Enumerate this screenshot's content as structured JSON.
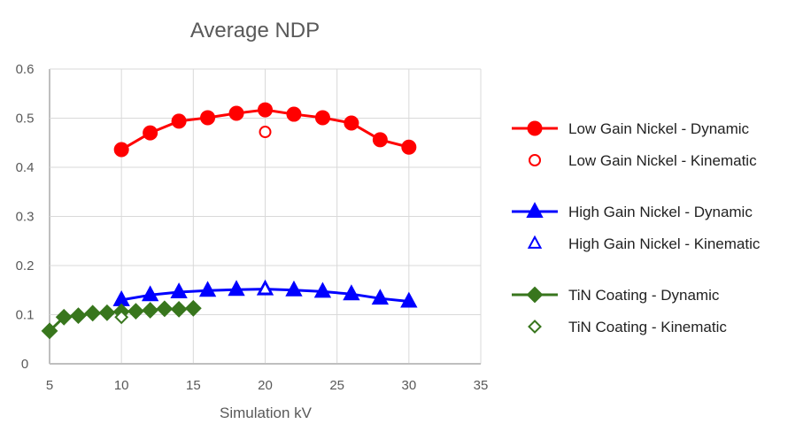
{
  "chart_data": {
    "type": "line",
    "title": "Average NDP",
    "xlabel": "Simulation kV",
    "ylabel": "",
    "xlim": [
      5,
      35
    ],
    "ylim": [
      0,
      0.6
    ],
    "xticks": [
      "5",
      "10",
      "15",
      "20",
      "25",
      "30",
      "35"
    ],
    "yticks": [
      "0",
      "0.1",
      "0.2",
      "0.3",
      "0.4",
      "0.5",
      "0.6"
    ],
    "grid": true,
    "legend_position": "right",
    "series": [
      {
        "name": "Low Gain Nickel - Dynamic",
        "color": "#FF0000",
        "marker": "circle",
        "filled": true,
        "line": true,
        "x": [
          10,
          12,
          14,
          16,
          18,
          20,
          22,
          24,
          26,
          28,
          30
        ],
        "y": [
          0.436,
          0.47,
          0.494,
          0.501,
          0.51,
          0.517,
          0.508,
          0.501,
          0.49,
          0.456,
          0.441
        ]
      },
      {
        "name": "Low Gain Nickel - Kinematic",
        "color": "#FF0000",
        "marker": "circle",
        "filled": false,
        "line": false,
        "x": [
          20
        ],
        "y": [
          0.472
        ]
      },
      {
        "name": "High Gain Nickel - Dynamic",
        "color": "#0000FF",
        "marker": "triangle",
        "filled": true,
        "line": true,
        "x": [
          10,
          12,
          14,
          16,
          18,
          20,
          22,
          24,
          26,
          28,
          30
        ],
        "y": [
          0.13,
          0.14,
          0.146,
          0.149,
          0.151,
          0.152,
          0.15,
          0.147,
          0.142,
          0.133,
          0.127
        ]
      },
      {
        "name": "High Gain Nickel - Kinematic",
        "color": "#0000FF",
        "marker": "triangle",
        "filled": false,
        "line": false,
        "x": [
          20
        ],
        "y": [
          0.152
        ]
      },
      {
        "name": "TiN Coating - Dynamic",
        "color": "#38761D",
        "marker": "diamond",
        "filled": true,
        "line": true,
        "x": [
          5,
          6,
          7,
          8,
          9,
          10,
          11,
          12,
          13,
          14,
          15
        ],
        "y": [
          0.067,
          0.095,
          0.098,
          0.103,
          0.104,
          0.106,
          0.107,
          0.109,
          0.112,
          0.111,
          0.113
        ]
      },
      {
        "name": "TiN Coating - Kinematic",
        "color": "#38761D",
        "marker": "diamond",
        "filled": false,
        "line": false,
        "x": [
          10
        ],
        "y": [
          0.095
        ]
      }
    ]
  }
}
